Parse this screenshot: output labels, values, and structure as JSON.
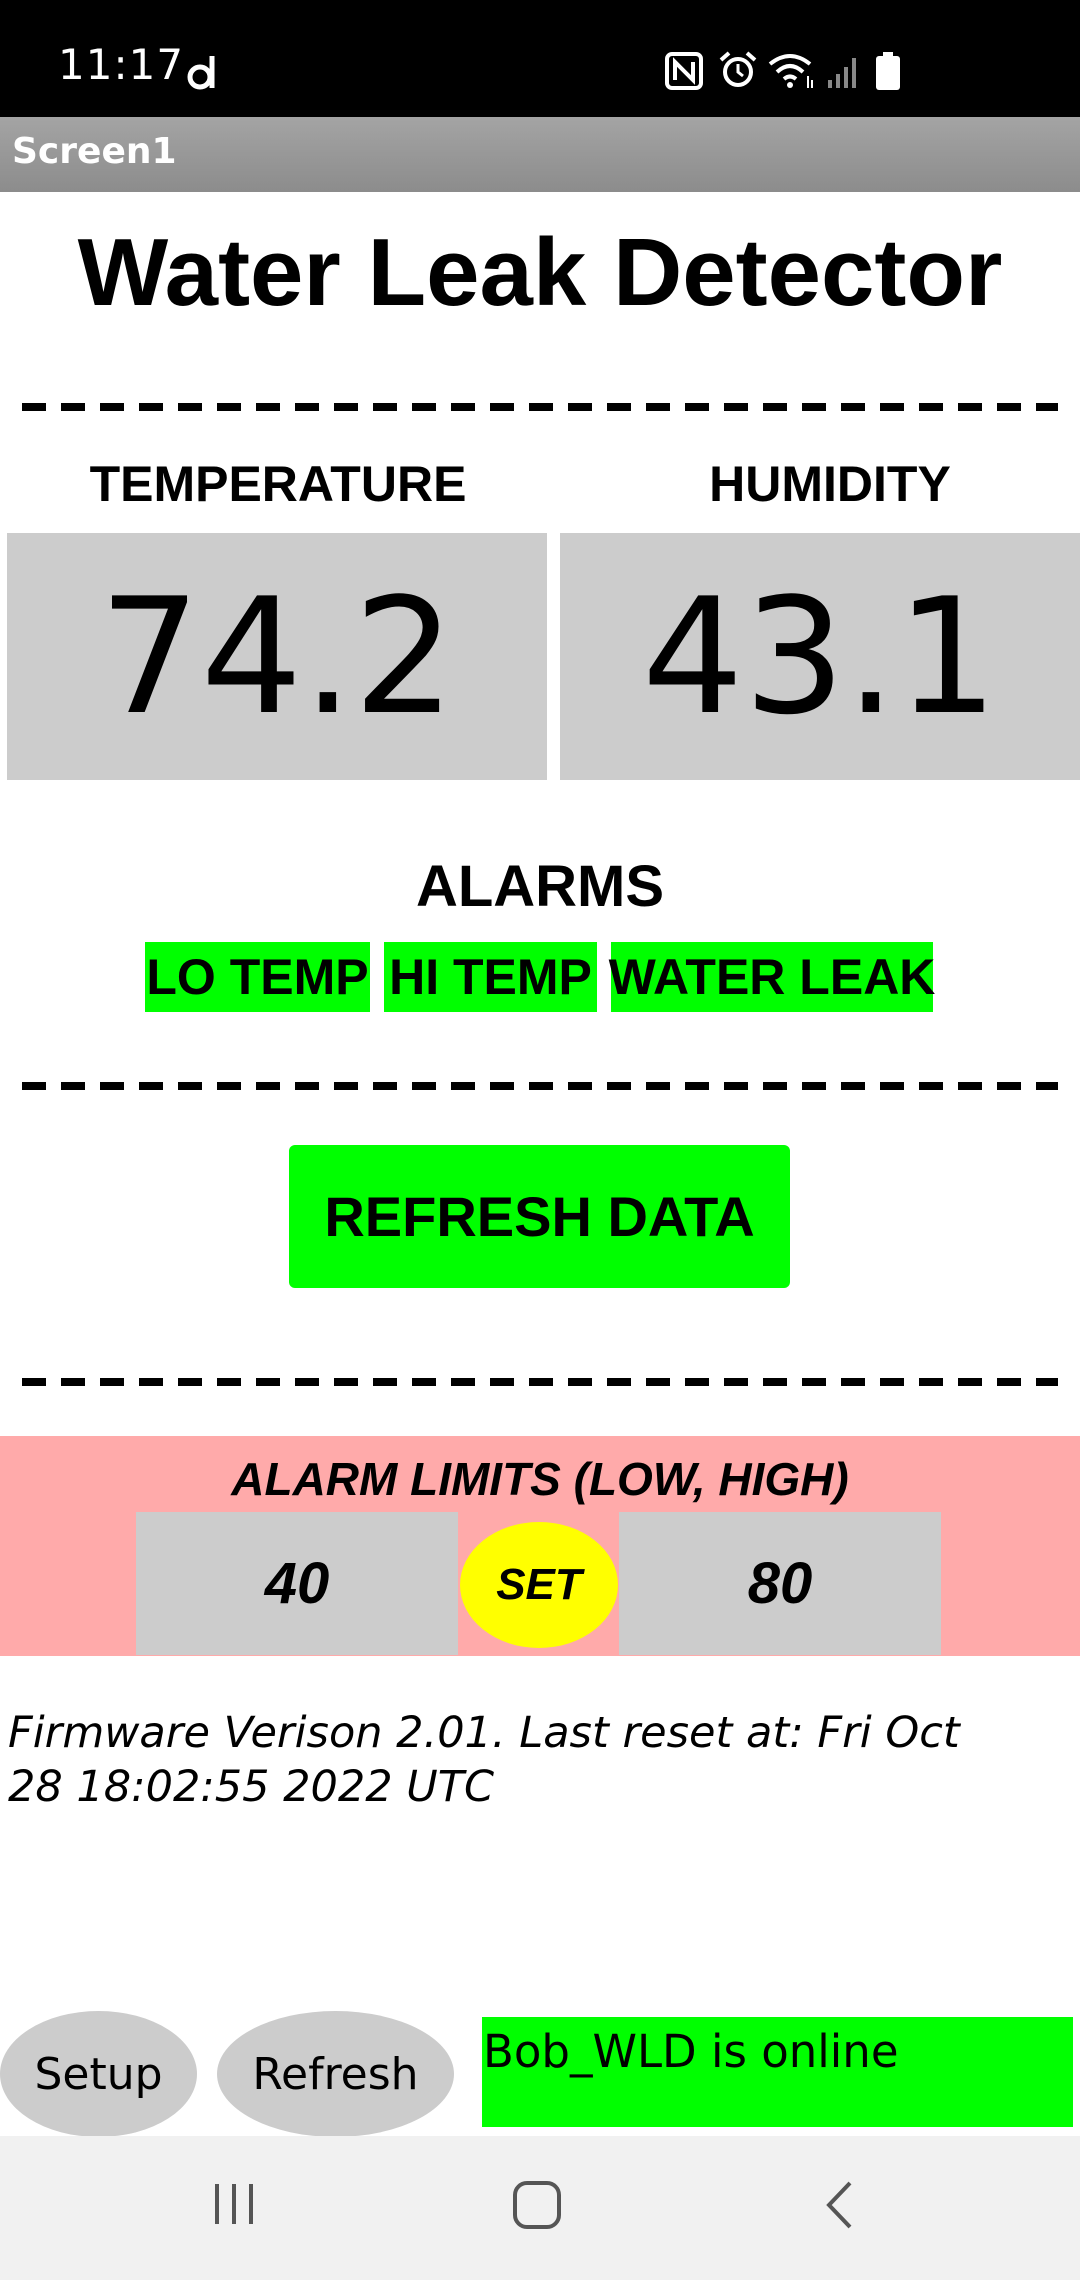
{
  "status_bar": {
    "time": "11:17",
    "icons": [
      "d-notification-icon",
      "nfc-icon",
      "alarm-clock-icon",
      "wifi-icon",
      "signal-icon",
      "battery-icon"
    ]
  },
  "app": {
    "screen_title": "Screen1",
    "heading": "Water Leak Detector"
  },
  "readings": {
    "temperature_label": "TEMPERATURE",
    "temperature_value": "74.2",
    "humidity_label": "HUMIDITY",
    "humidity_value": "43.1"
  },
  "alarms": {
    "heading": "ALARMS",
    "badges": [
      "LO TEMP",
      "HI TEMP",
      "WATER LEAK"
    ],
    "badge_color": "#00ff00"
  },
  "refresh_button_label": "REFRESH DATA",
  "alarm_limits": {
    "label": "ALARM LIMITS (LOW, HIGH)",
    "low": "40",
    "high": "80",
    "set_label": "SET",
    "panel_color": "#ffaaaa",
    "set_color": "#ffff00"
  },
  "firmware_text": "Firmware Verison 2.01. Last reset at: Fri Oct 28 18:02:55 2022 UTC",
  "bottom": {
    "setup_label": "Setup",
    "refresh_label": "Refresh",
    "online_status": "Bob_WLD is online",
    "online_color": "#00ff00"
  },
  "nav_bar": {
    "buttons": [
      "recent-apps-icon",
      "home-icon",
      "back-icon"
    ]
  }
}
